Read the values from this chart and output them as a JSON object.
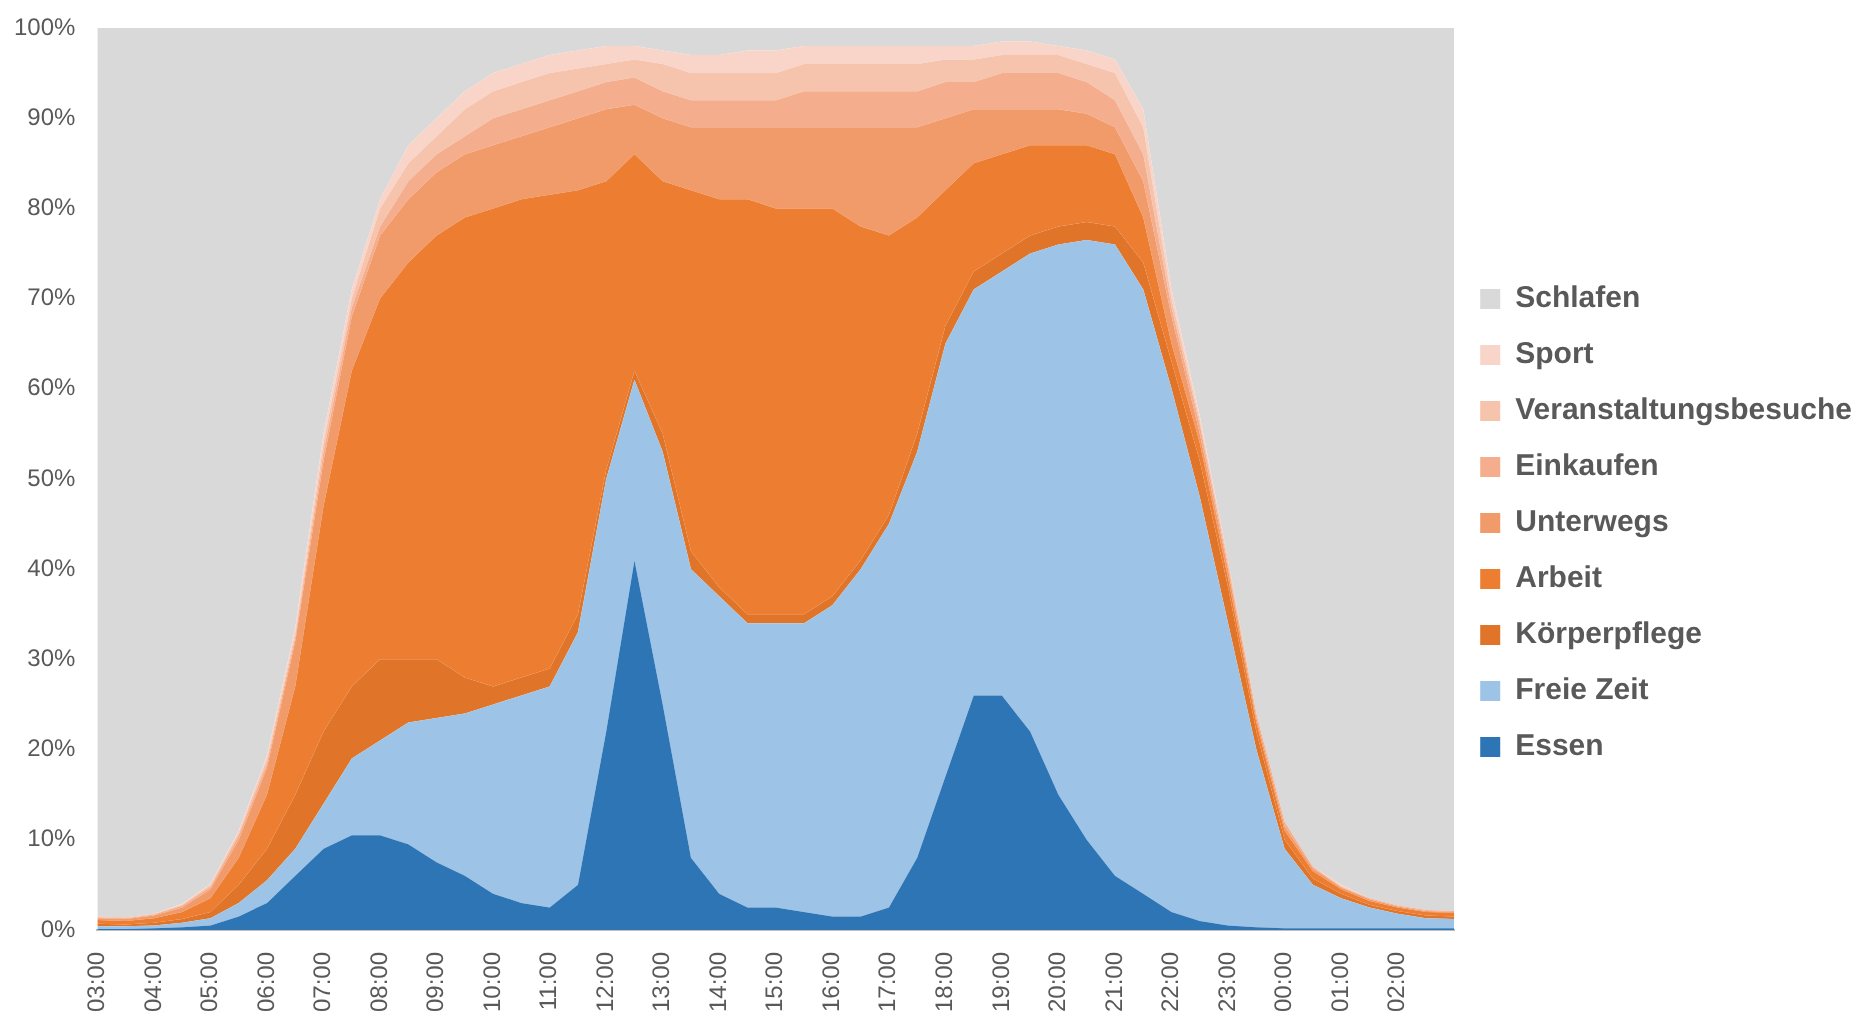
{
  "chart_data": {
    "type": "area",
    "stacked": true,
    "grid": false,
    "legend": "right",
    "categories": [
      "03:00",
      null,
      "04:00",
      null,
      "05:00",
      null,
      "06:00",
      null,
      "07:00",
      null,
      "08:00",
      null,
      "09:00",
      null,
      "10:00",
      null,
      "11:00",
      null,
      "12:00",
      null,
      "13:00",
      null,
      "14:00",
      null,
      "15:00",
      null,
      "16:00",
      null,
      "17:00",
      null,
      "18:00",
      null,
      "19:00",
      null,
      "20:00",
      null,
      "21:00",
      null,
      "22:00",
      null,
      "23:00",
      null,
      "00:00",
      null,
      "01:00",
      null,
      "02:00",
      null,
      null
    ],
    "ylim": [
      0,
      100
    ],
    "yticks": [
      {
        "value": 0,
        "label": "0%"
      },
      {
        "value": 10,
        "label": "10%"
      },
      {
        "value": 20,
        "label": "20%"
      },
      {
        "value": 30,
        "label": "30%"
      },
      {
        "value": 40,
        "label": "40%"
      },
      {
        "value": 50,
        "label": "50%"
      },
      {
        "value": 60,
        "label": "60%"
      },
      {
        "value": 70,
        "label": "70%"
      },
      {
        "value": 80,
        "label": "80%"
      },
      {
        "value": 90,
        "label": "90%"
      },
      {
        "value": 100,
        "label": "100%"
      }
    ],
    "series": [
      {
        "name": "Essen",
        "color": "#2e75b6",
        "values": [
          0.1,
          0.1,
          0.2,
          0.3,
          0.5,
          1.5,
          3,
          6,
          9,
          10.5,
          10.5,
          9.5,
          7.5,
          6,
          4,
          3,
          2.5,
          5,
          22,
          41,
          25,
          8,
          4,
          2.5,
          2.5,
          2,
          1.5,
          1.5,
          2.5,
          8,
          17,
          26,
          26,
          22,
          15,
          10,
          6,
          4,
          2,
          1,
          0.5,
          0.3,
          0.2,
          0.2,
          0.2,
          0.2,
          0.2,
          0.2,
          0.2
        ]
      },
      {
        "name": "Freie Zeit",
        "color": "#9dc3e6",
        "values": [
          0.3,
          0.3,
          0.3,
          0.5,
          0.8,
          1.5,
          2.5,
          3,
          5,
          8.5,
          10.5,
          13.5,
          16,
          18,
          21,
          23,
          24.5,
          28,
          28,
          20,
          28,
          32,
          33,
          31.5,
          31.5,
          32,
          34.5,
          38.5,
          42.5,
          45,
          48,
          45,
          47,
          53,
          61,
          66.5,
          70,
          67,
          58,
          47,
          33.5,
          19.7,
          8.8,
          4.8,
          3.3,
          2.3,
          1.6,
          1.1,
          1
        ]
      },
      {
        "name": "Körperpflege",
        "color": "#e07428",
        "values": [
          0.3,
          0.2,
          0.3,
          0.4,
          0.7,
          2,
          3.5,
          6,
          8,
          8,
          9,
          7,
          6.5,
          4,
          2,
          2,
          2,
          2,
          1,
          1,
          2,
          2,
          1,
          1,
          1,
          1,
          1,
          1,
          1,
          2,
          2,
          2,
          2,
          2,
          2,
          2,
          2,
          3,
          3,
          4,
          4,
          2,
          1,
          0.7,
          0.5,
          0.3,
          0.3,
          0.3,
          0.3
        ]
      },
      {
        "name": "Arbeit",
        "color": "#ed7d31",
        "values": [
          0.4,
          0.4,
          0.5,
          0.8,
          1.5,
          3,
          6,
          12,
          25,
          35,
          40,
          44,
          47,
          51,
          53,
          53,
          52.5,
          47,
          32,
          24,
          28,
          40,
          43,
          46,
          45,
          45,
          43,
          37,
          31,
          24,
          15,
          12,
          11,
          10,
          9,
          8.5,
          8,
          5,
          2,
          2,
          1,
          1,
          1,
          0.8,
          0.5,
          0.4,
          0.4,
          0.4,
          0.4
        ]
      },
      {
        "name": "Unterwegs",
        "color": "#f19a6a",
        "values": [
          0.2,
          0.2,
          0.3,
          0.5,
          1,
          2,
          3,
          5,
          5,
          6,
          7,
          7,
          7,
          7,
          7,
          7,
          7.5,
          8,
          8,
          5.5,
          7,
          7,
          8,
          8,
          9,
          9,
          9,
          11,
          12,
          10,
          8,
          6,
          5,
          4,
          4,
          3.5,
          3,
          4,
          3,
          1,
          1,
          0.5,
          0.5,
          0.3,
          0.2,
          0.2,
          0.1,
          0.1,
          0.1
        ]
      },
      {
        "name": "Einkaufen",
        "color": "#f4ae8e",
        "values": [
          0.1,
          0.1,
          0.1,
          0.2,
          0.3,
          0.5,
          0.5,
          0.5,
          1,
          1,
          1,
          2,
          2,
          2,
          3,
          3,
          3,
          3,
          3,
          3,
          3,
          3,
          3,
          3,
          3,
          4,
          4,
          4,
          4,
          4,
          4,
          3,
          4,
          4,
          4,
          3.5,
          3,
          3,
          1,
          1,
          0.5,
          0.5,
          0.5,
          0.2,
          0.1,
          0.1,
          0.1,
          0.1,
          0.1
        ]
      },
      {
        "name": "Veranstaltungsbesuche",
        "color": "#f6c3ad",
        "values": [
          0.1,
          0.1,
          0.1,
          0.1,
          0.2,
          0.3,
          0.5,
          0.5,
          1,
          1,
          2,
          2,
          2,
          3,
          3,
          3,
          3,
          2.5,
          2,
          2,
          3,
          3,
          3,
          3,
          3,
          3,
          3,
          3,
          3,
          3,
          2.5,
          2.5,
          2,
          2,
          2,
          2,
          3,
          3,
          1,
          0.5,
          0.5,
          0,
          0,
          0,
          0.1,
          0,
          0,
          0,
          0
        ]
      },
      {
        "name": "Sport",
        "color": "#f8d5c8",
        "values": [
          0,
          0,
          0,
          0.1,
          0.1,
          0.2,
          0.3,
          0.5,
          1,
          1,
          1,
          2,
          2,
          2,
          2,
          2,
          2,
          2,
          2,
          1.5,
          1.5,
          2,
          2,
          2.5,
          2.5,
          2,
          2,
          2,
          2,
          2,
          1.5,
          1.5,
          1.5,
          1.5,
          1,
          1.5,
          1.5,
          2,
          1,
          0.5,
          0,
          0,
          0,
          0,
          0.1,
          0,
          0,
          0,
          0
        ]
      },
      {
        "name": "Schlafen",
        "color": "#d9d9d9",
        "values": [
          98.5,
          98.6,
          98.2,
          97.1,
          94.9,
          89,
          80.7,
          66.5,
          45,
          29,
          19,
          13,
          10,
          7,
          5,
          4,
          3,
          2.5,
          2,
          2,
          2.5,
          3,
          3,
          2.5,
          2.5,
          2,
          2,
          2,
          2,
          2,
          2,
          2,
          1.5,
          1.5,
          2,
          2.5,
          3.5,
          9,
          29,
          43,
          59,
          76,
          88,
          93,
          95,
          96.5,
          97.3,
          97.8,
          97.9
        ]
      }
    ]
  }
}
